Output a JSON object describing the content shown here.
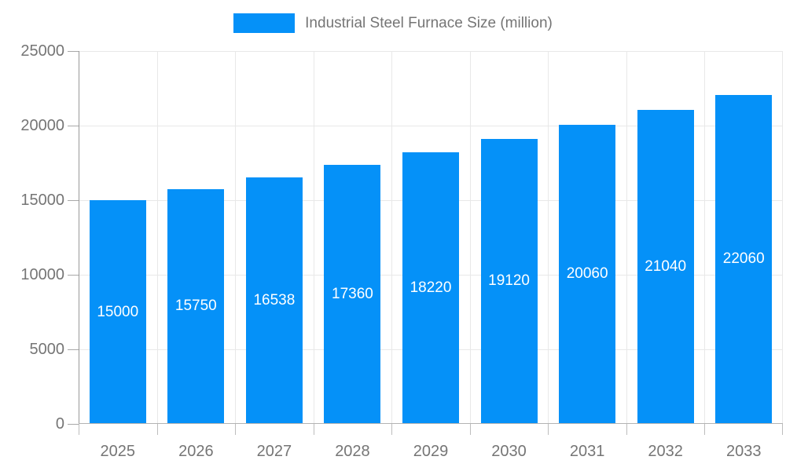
{
  "colors": {
    "bar": "#0591f8",
    "bar_label": "#ffffff",
    "grid": "#e8e8e8",
    "y_axis_line": "#999999",
    "x_axis_line": "#b3b3b3",
    "tick": "#b0b0b0",
    "text": "#757575",
    "background": "#ffffff"
  },
  "legend": {
    "position": "top-center",
    "swatch_color": "#0591f8"
  },
  "chart_data": {
    "type": "bar",
    "title": "Industrial Steel Furnace Size (million)",
    "categories": [
      "2025",
      "2026",
      "2027",
      "2028",
      "2029",
      "2030",
      "2031",
      "2032",
      "2033"
    ],
    "values": [
      15000,
      15750,
      16538,
      17360,
      18220,
      19120,
      20060,
      21040,
      22060
    ],
    "bar_labels": [
      15000,
      15750,
      16538,
      17360,
      18220,
      19120,
      20060,
      21040,
      22060
    ],
    "xlabel": "",
    "ylabel": "",
    "ylim": [
      0,
      25000
    ],
    "yticks": [
      0,
      5000,
      10000,
      15000,
      20000,
      25000
    ],
    "grid": true,
    "legend_position": "top",
    "bar_label_color": "#ffffff"
  }
}
